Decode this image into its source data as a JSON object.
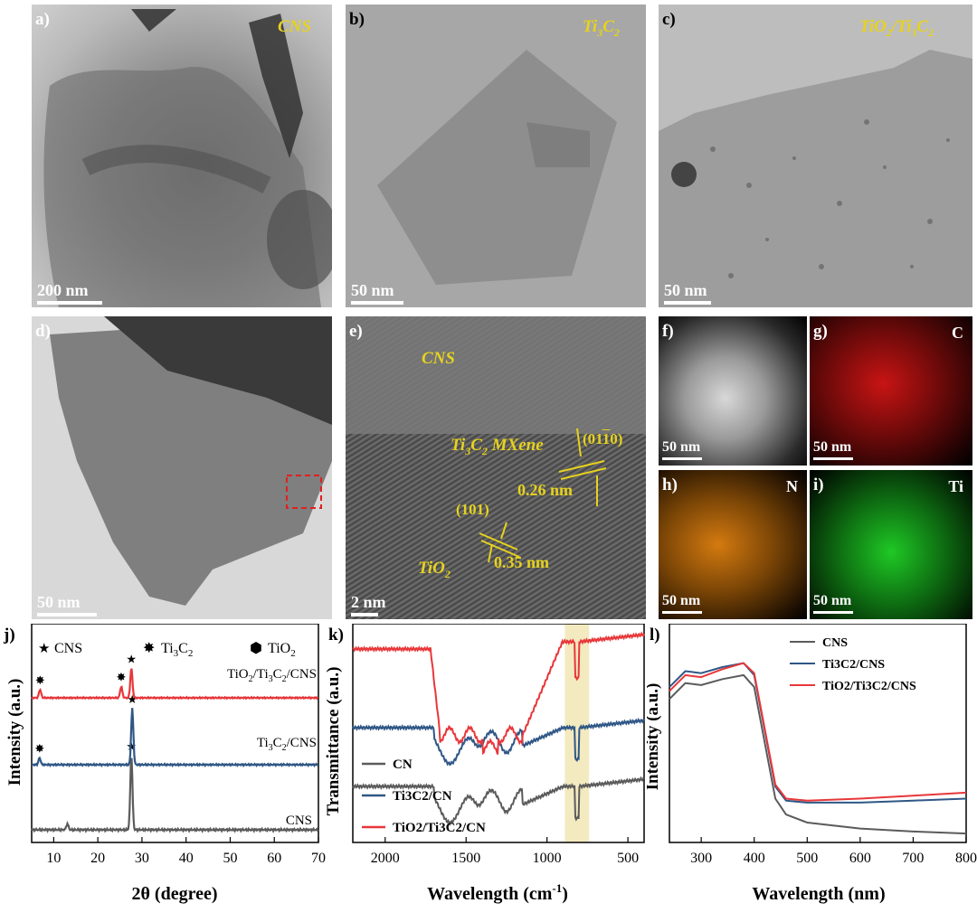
{
  "panels": {
    "a": {
      "label": "a)",
      "tag": "CNS",
      "scale": "200 nm"
    },
    "b": {
      "label": "b)",
      "tag_main": "Ti",
      "tag_sub1": "3",
      "tag_mid": "C",
      "tag_sub2": "2",
      "scale": "50 nm"
    },
    "c": {
      "label": "c)",
      "tag_main": "TiO",
      "tag_sub1": "2",
      "tag_slash": "/Ti",
      "tag_sub2": "3",
      "tag_c": "C",
      "tag_sub3": "2",
      "scale": "50 nm"
    },
    "d": {
      "label": "d)",
      "scale": "50 nm"
    },
    "e": {
      "label": "e)",
      "cns": "CNS",
      "mx_ti": "Ti",
      "mx_s1": "3",
      "mx_c": "C",
      "mx_s2": "2",
      "mx_rest": " MXene",
      "plane1": "(01",
      "plane1_bar": "1",
      "plane1_end": "0)",
      "d1": "0.26 nm",
      "plane2": "(101)",
      "d2": "0.35 nm",
      "tio_main": "TiO",
      "tio_sub": "2",
      "scale": "2 nm"
    },
    "f": {
      "label": "f)",
      "scale": "50 nm"
    },
    "g": {
      "label": "g)",
      "element": "C",
      "scale": "50 nm"
    },
    "h": {
      "label": "h)",
      "element": "N",
      "scale": "50 nm"
    },
    "i": {
      "label": "i)",
      "element": "Ti",
      "scale": "50 nm"
    }
  },
  "colors": {
    "gray": "#5b5b5b",
    "blue": "#2f5786",
    "red": "#e8373a",
    "highlight": "#f3eac0",
    "map_c": "#e01818",
    "map_n": "#f08a10",
    "map_ti": "#22d12a"
  },
  "chart_data": [
    {
      "panel": "j)",
      "type": "line",
      "xlabel": "2θ (degree)",
      "ylabel": "Intensity (a.u.)",
      "xlim": [
        5,
        70
      ],
      "xticks": [
        10,
        20,
        30,
        40,
        50,
        60,
        70
      ],
      "legend": {
        "cns": "CNS",
        "ti3c2": "Ti3C2",
        "tio2": "TiO2"
      },
      "series": [
        {
          "name": "CNS",
          "peaks": [
            {
              "x": 13.1,
              "h": 0.08
            },
            {
              "x": 27.6,
              "h": 1.0
            }
          ]
        },
        {
          "name": "Ti3C2/CNS",
          "peaks": [
            {
              "x": 6.8,
              "h": 0.12
            },
            {
              "x": 27.8,
              "h": 1.0
            }
          ]
        },
        {
          "name": "TiO2/Ti3C2/CNS",
          "peaks": [
            {
              "x": 6.9,
              "h": 0.18
            },
            {
              "x": 25.3,
              "h": 0.25
            },
            {
              "x": 27.6,
              "h": 0.65
            }
          ]
        }
      ],
      "curve_labels": [
        "TiO2/Ti3C2/CNS",
        "Ti3C2/CNS",
        "CNS"
      ]
    },
    {
      "panel": "k)",
      "type": "line",
      "xlabel": "Wavelength (cm",
      "xlabel_sup": "-1",
      "xlabel_end": ")",
      "ylabel": "Transmittance (a.u.)",
      "xlim": [
        2200,
        400
      ],
      "xticks": [
        2000,
        1500,
        1000,
        500
      ],
      "highlight": [
        890,
        740
      ],
      "legend": [
        {
          "name": "CN",
          "color": "gray"
        },
        {
          "name": "Ti3C2/CN",
          "color": "blue"
        },
        {
          "name": "TiO2/Ti3C2/CN",
          "color": "red"
        }
      ]
    },
    {
      "panel": "l)",
      "type": "line",
      "xlabel": "Wavelength (nm)",
      "ylabel": "Intensity (a.u.)",
      "xlim": [
        240,
        800
      ],
      "xticks": [
        300,
        400,
        500,
        600,
        700,
        800
      ],
      "legend": [
        {
          "name": "CNS",
          "color": "gray"
        },
        {
          "name": "Ti3C2/CNS",
          "color": "blue"
        },
        {
          "name": "TiO2/Ti3C2/CNS",
          "color": "red"
        }
      ],
      "series": [
        {
          "name": "CNS",
          "points": [
            [
              240,
              0.72
            ],
            [
              270,
              0.8
            ],
            [
              300,
              0.79
            ],
            [
              340,
              0.82
            ],
            [
              380,
              0.84
            ],
            [
              400,
              0.78
            ],
            [
              420,
              0.5
            ],
            [
              440,
              0.22
            ],
            [
              460,
              0.14
            ],
            [
              500,
              0.1
            ],
            [
              600,
              0.07
            ],
            [
              700,
              0.055
            ],
            [
              800,
              0.045
            ]
          ]
        },
        {
          "name": "Ti3C2/CNS",
          "points": [
            [
              240,
              0.78
            ],
            [
              270,
              0.86
            ],
            [
              300,
              0.85
            ],
            [
              340,
              0.88
            ],
            [
              380,
              0.9
            ],
            [
              400,
              0.84
            ],
            [
              420,
              0.56
            ],
            [
              440,
              0.28
            ],
            [
              460,
              0.21
            ],
            [
              500,
              0.2
            ],
            [
              600,
              0.2
            ],
            [
              700,
              0.21
            ],
            [
              800,
              0.22
            ]
          ]
        },
        {
          "name": "TiO2/Ti3C2/CNS",
          "points": [
            [
              240,
              0.76
            ],
            [
              270,
              0.84
            ],
            [
              300,
              0.83
            ],
            [
              340,
              0.87
            ],
            [
              380,
              0.9
            ],
            [
              400,
              0.85
            ],
            [
              420,
              0.57
            ],
            [
              440,
              0.29
            ],
            [
              460,
              0.22
            ],
            [
              500,
              0.21
            ],
            [
              600,
              0.22
            ],
            [
              700,
              0.235
            ],
            [
              800,
              0.25
            ]
          ]
        }
      ]
    }
  ]
}
